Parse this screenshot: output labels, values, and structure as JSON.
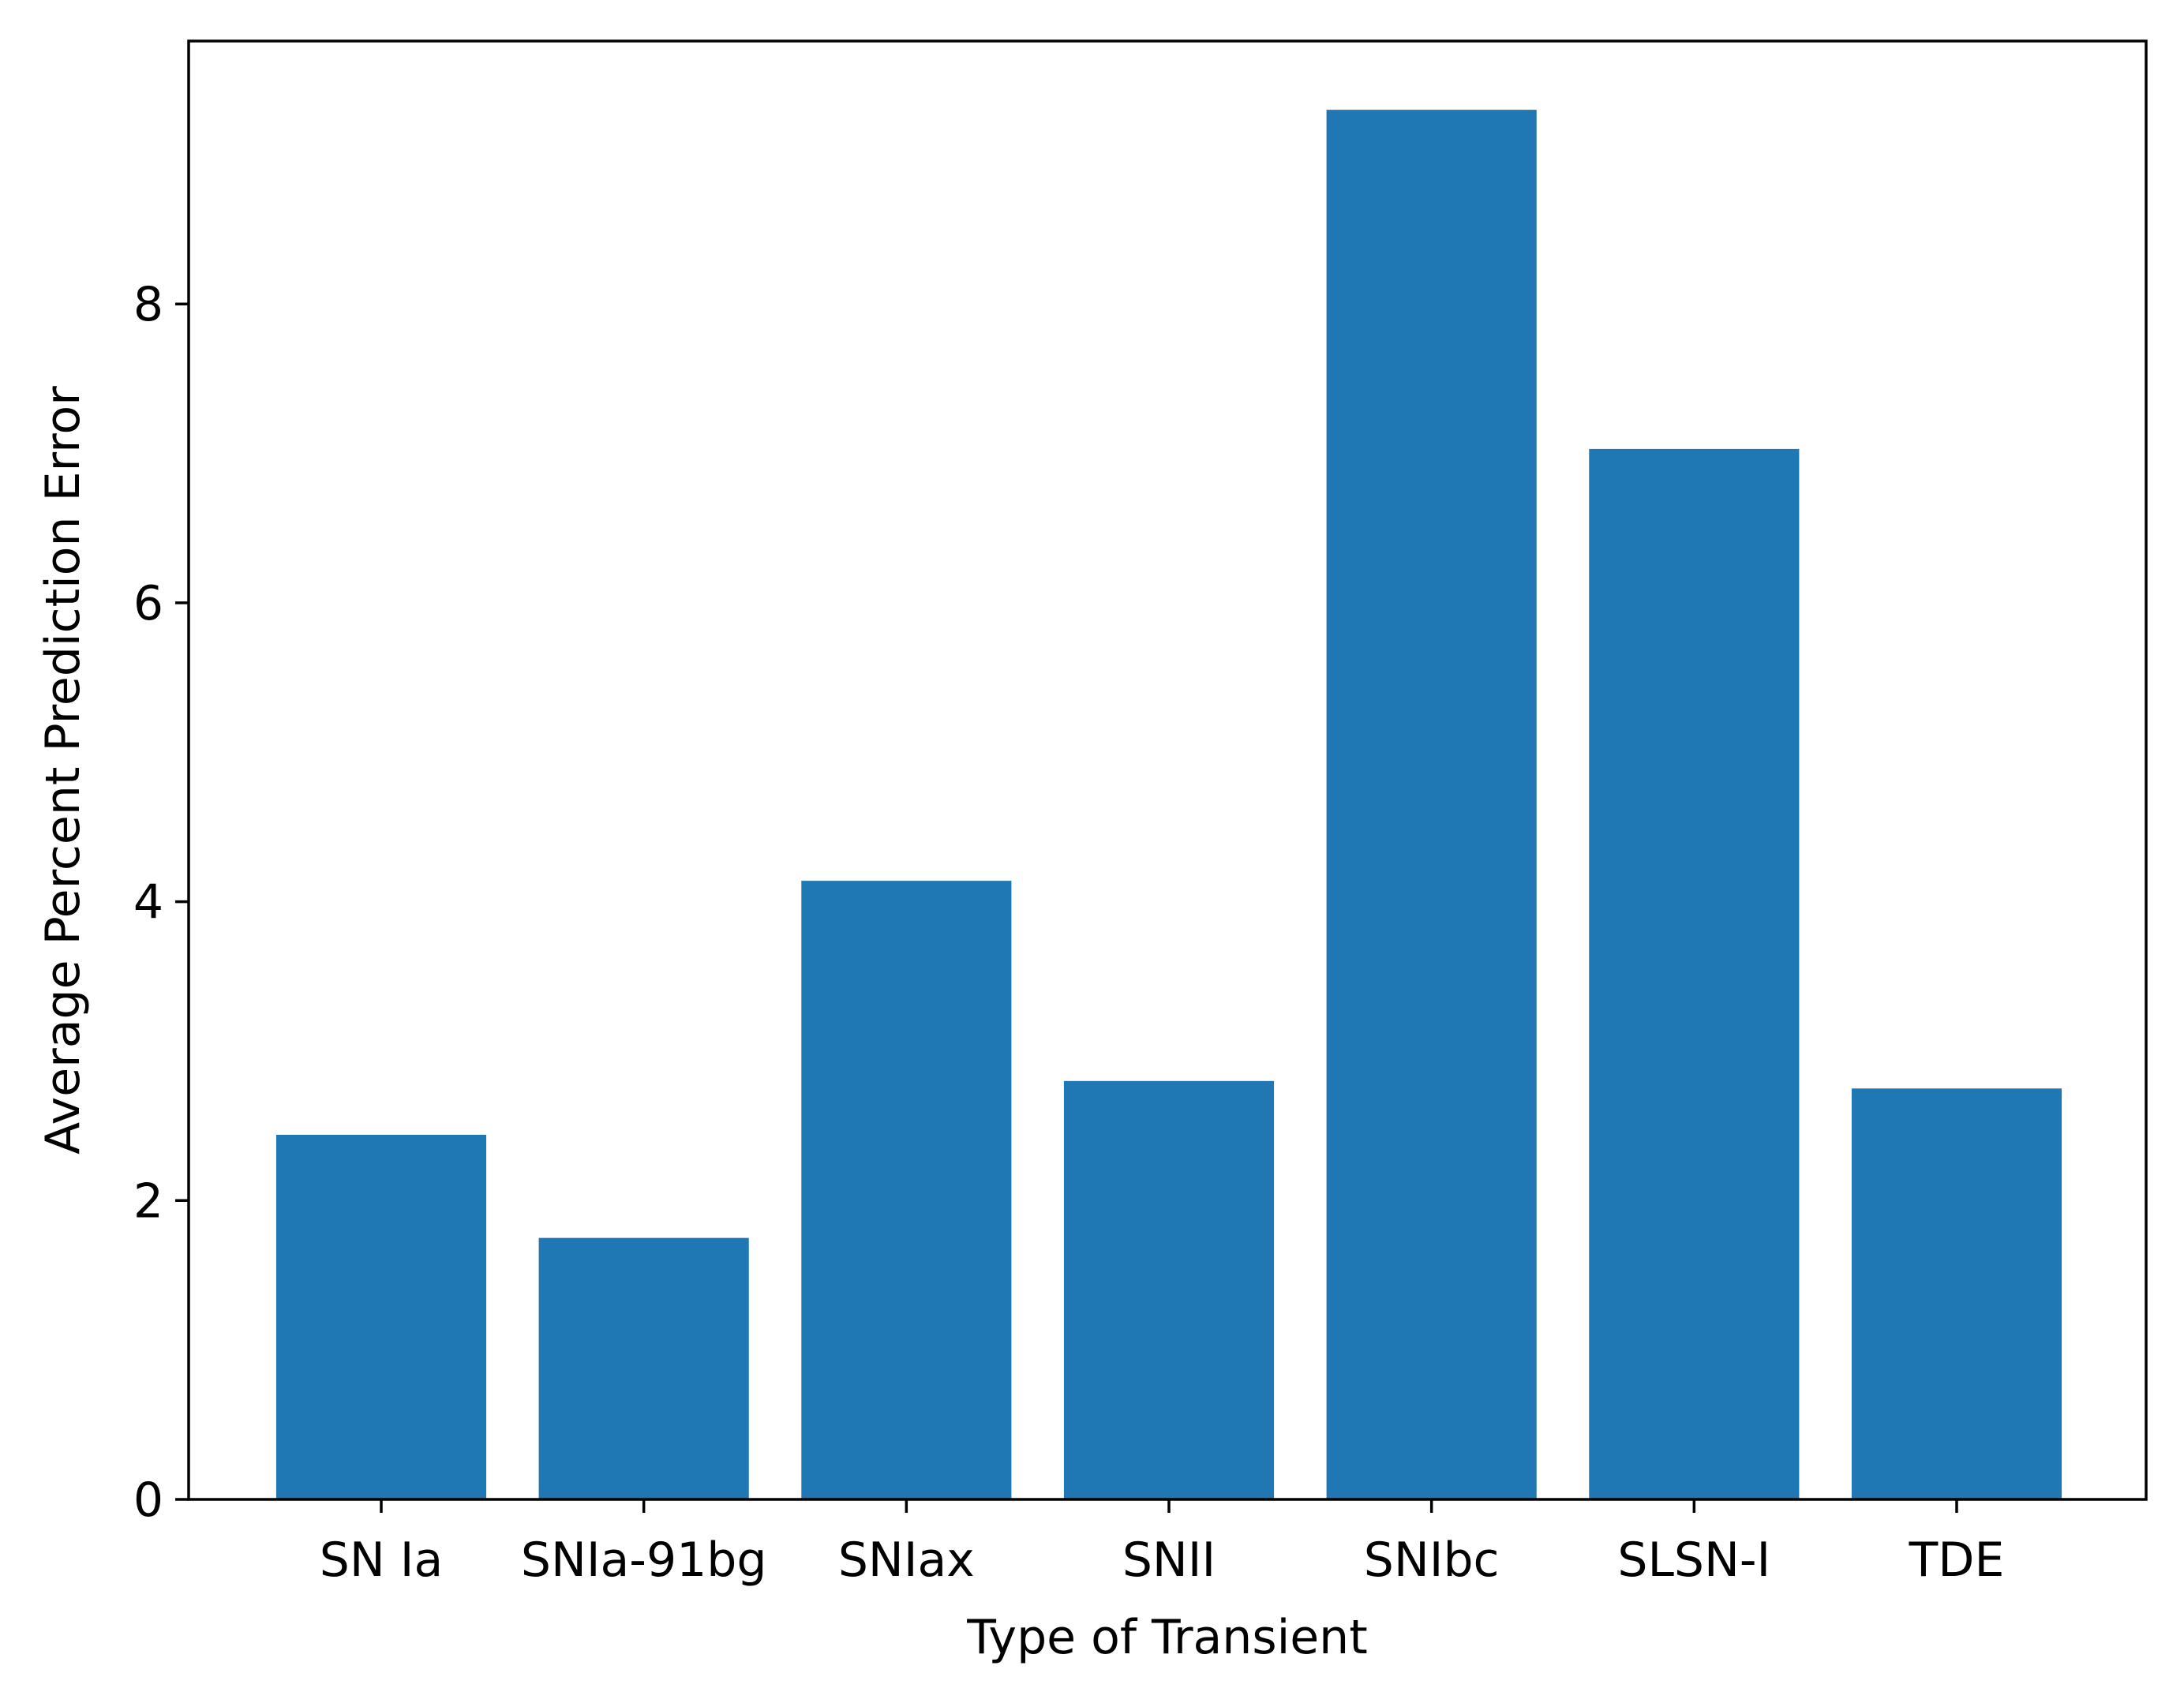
{
  "chart_data": {
    "type": "bar",
    "title": "",
    "xlabel": "Type of Transient",
    "ylabel": "Average Percent Prediction Error",
    "categories": [
      "SN Ia",
      "SNIa-91bg",
      "SNIax",
      "SNII",
      "SNIbc",
      "SLSN-I",
      "TDE"
    ],
    "values": [
      2.44,
      1.75,
      4.14,
      2.8,
      9.3,
      7.03,
      2.75
    ],
    "ylim": [
      0,
      9.76
    ],
    "yticks": [
      0,
      2,
      4,
      6,
      8
    ],
    "ytick_labels": [
      "0",
      "2",
      "4",
      "6",
      "8"
    ],
    "bar_color": "#1f77b4",
    "grid": false,
    "legend": false
  }
}
